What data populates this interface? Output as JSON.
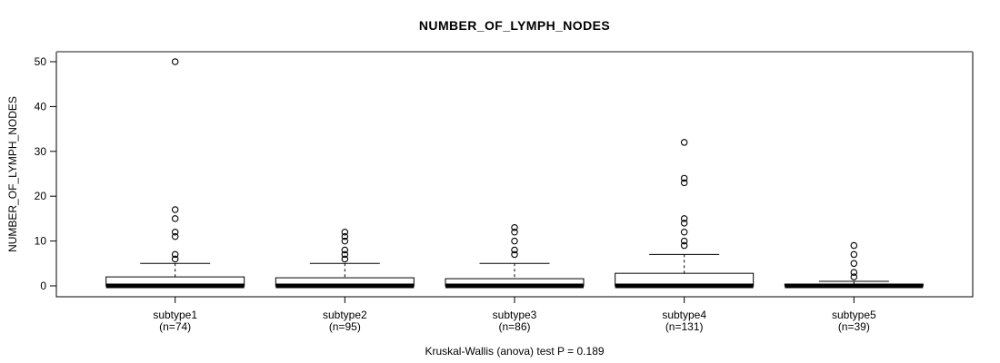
{
  "title": "NUMBER_OF_LYMPH_NODES",
  "caption": "Kruskal-Wallis (anova) test P = 0.189",
  "colors": {
    "line": "#000000",
    "border_top": "#8a8a8a",
    "background": "#ffffff",
    "box_fill": "#ffffff"
  },
  "chart_data": {
    "type": "boxplot",
    "title": "NUMBER_OF_LYMPH_NODES",
    "ylabel": "NUMBER_OF_LYMPH_NODES",
    "xlabel": "",
    "caption": "Kruskal-Wallis (anova) test P = 0.189",
    "ylim": [
      0,
      50
    ],
    "yticks": [
      0,
      10,
      20,
      30,
      40,
      50
    ],
    "grid": false,
    "legend": "none",
    "groups": [
      {
        "label": "subtype1",
        "n_label": "(n=74)",
        "n": 74,
        "q1": 0,
        "median": 0,
        "q3": 2,
        "whisker_low": 0,
        "whisker_high": 5,
        "outliers": [
          6,
          7,
          11,
          12,
          15,
          17,
          50
        ]
      },
      {
        "label": "subtype2",
        "n_label": "(n=95)",
        "n": 95,
        "q1": 0,
        "median": 0,
        "q3": 1.8,
        "whisker_low": 0,
        "whisker_high": 5,
        "outliers": [
          6,
          7,
          8,
          10,
          11,
          12
        ]
      },
      {
        "label": "subtype3",
        "n_label": "(n=86)",
        "n": 86,
        "q1": 0,
        "median": 0,
        "q3": 1.6,
        "whisker_low": 0,
        "whisker_high": 5,
        "outliers": [
          7,
          8,
          10,
          12,
          13
        ]
      },
      {
        "label": "subtype4",
        "n_label": "(n=131)",
        "n": 131,
        "q1": 0,
        "median": 0,
        "q3": 2.8,
        "whisker_low": 0,
        "whisker_high": 7,
        "outliers": [
          9,
          10,
          12,
          14,
          15,
          23,
          24,
          32
        ]
      },
      {
        "label": "subtype5",
        "n_label": "(n=39)",
        "n": 39,
        "q1": 0,
        "median": 0,
        "q3": 0.4,
        "whisker_low": 0,
        "whisker_high": 1,
        "outliers": [
          2,
          3,
          5,
          7,
          9
        ]
      }
    ]
  }
}
